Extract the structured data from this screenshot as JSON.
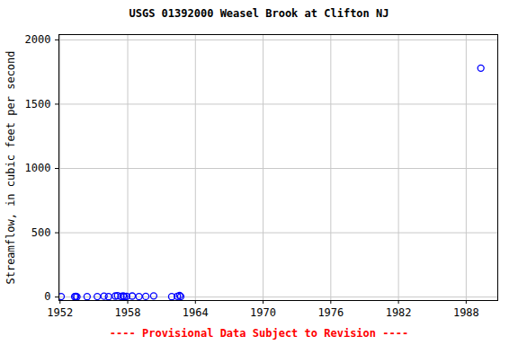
{
  "chart_data": {
    "type": "scatter",
    "title": "USGS 01392000 Weasel Brook at Clifton NJ",
    "caption": "---- Provisional Data Subject to Revision ----",
    "y_label": "Streamflow, in cubic feet per second",
    "x": [
      1952.1,
      1953.3,
      1953.4,
      1953.5,
      1954.4,
      1955.3,
      1955.9,
      1956.3,
      1956.9,
      1957.1,
      1957.4,
      1957.6,
      1957.7,
      1957.9,
      1958.4,
      1959.0,
      1959.6,
      1960.3,
      1961.9,
      1962.4,
      1962.6,
      1962.7,
      1989.3
    ],
    "values": [
      4,
      3,
      6,
      2,
      3,
      4,
      7,
      3,
      8,
      10,
      5,
      9,
      3,
      6,
      8,
      4,
      5,
      9,
      3,
      6,
      12,
      4,
      1780
    ],
    "color": "#0000ff",
    "marker": "open_circle",
    "xlim": [
      1951.9,
      1990.8
    ],
    "xticks": [
      1952,
      1958,
      1964,
      1970,
      1976,
      1982,
      1988
    ],
    "ylim": [
      -27,
      2041
    ],
    "yticks": [
      0,
      500,
      1000,
      1500,
      2000
    ],
    "grid": true
  }
}
